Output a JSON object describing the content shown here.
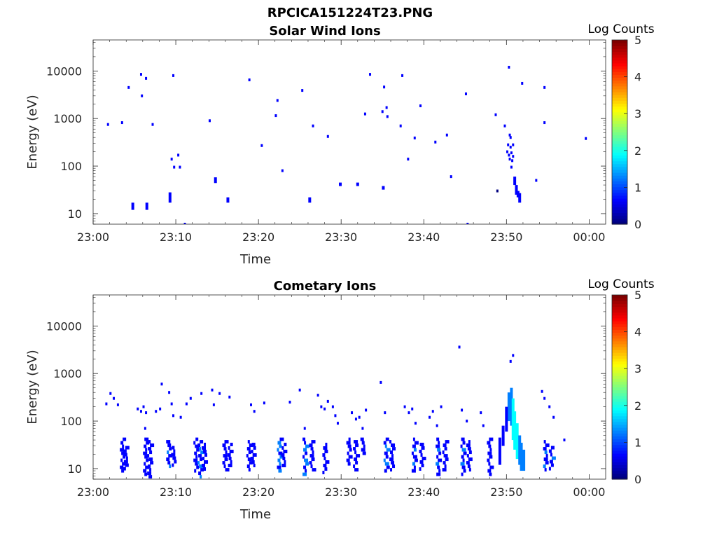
{
  "figure": {
    "title": "RPCICA151224T23.PNG"
  },
  "colormap": [
    "#00007f",
    "#0000ff",
    "#007fff",
    "#00ffff",
    "#7fff7f",
    "#ffff00",
    "#ff7f00",
    "#ff0000",
    "#7f0000"
  ],
  "chart_data": [
    {
      "type": "heatmap",
      "title": "Solar Wind Ions",
      "xlabel": "Time",
      "ylabel": "Energy (eV)",
      "x_ticks": [
        "23:00",
        "23:10",
        "23:20",
        "23:30",
        "23:40",
        "23:50",
        "00:00"
      ],
      "x_range_minutes": [
        0,
        62
      ],
      "y_scale": "log",
      "y_ticks": [
        "10",
        "100",
        "1000",
        "10000"
      ],
      "ylim": [
        6,
        45000
      ],
      "colorbar": {
        "label": "Log Counts",
        "ticks": [
          "0",
          "1",
          "2",
          "3",
          "4",
          "5"
        ],
        "range": [
          0,
          5
        ]
      },
      "cells": [
        [
          1.8,
          750,
          0.4
        ],
        [
          3.5,
          820,
          0.4
        ],
        [
          4.3,
          4500,
          0.4
        ],
        [
          5.8,
          8500,
          0.4
        ],
        [
          5.9,
          3000,
          0.4
        ],
        [
          6.4,
          7000,
          0.4
        ],
        [
          7.2,
          750,
          0.4
        ],
        [
          9.7,
          8000,
          0.4
        ],
        [
          9.5,
          140,
          0.5
        ],
        [
          9.8,
          95,
          0.4
        ],
        [
          10.3,
          170,
          0.4
        ],
        [
          10.5,
          95,
          0.4
        ],
        [
          11.1,
          6,
          0.4
        ],
        [
          14.1,
          900,
          0.4
        ],
        [
          18.9,
          6500,
          0.4
        ],
        [
          20.4,
          270,
          0.4
        ],
        [
          22.1,
          1150,
          0.4
        ],
        [
          22.3,
          2400,
          0.4
        ],
        [
          22.9,
          80,
          0.4
        ],
        [
          25.3,
          3900,
          0.4
        ],
        [
          26.6,
          700,
          0.4
        ],
        [
          28.4,
          420,
          0.4
        ],
        [
          32.9,
          1250,
          0.4
        ],
        [
          33.5,
          8500,
          0.4
        ],
        [
          35.2,
          4600,
          0.4
        ],
        [
          35.0,
          1400,
          0.4
        ],
        [
          35.5,
          1700,
          0.4
        ],
        [
          35.6,
          1100,
          0.4
        ],
        [
          37.2,
          700,
          0.4
        ],
        [
          37.4,
          8000,
          0.4
        ],
        [
          38.1,
          140,
          0.5
        ],
        [
          38.9,
          390,
          0.4
        ],
        [
          39.6,
          1850,
          0.4
        ],
        [
          41.4,
          320,
          0.4
        ],
        [
          42.8,
          450,
          0.4
        ],
        [
          43.3,
          60,
          0.5
        ],
        [
          45.1,
          3300,
          0.4
        ],
        [
          45.3,
          6,
          0.4
        ],
        [
          48.7,
          1200,
          0.4
        ],
        [
          49.8,
          700,
          0.4
        ],
        [
          50.3,
          12000,
          0.4
        ],
        [
          50.4,
          450,
          0.4
        ],
        [
          50.5,
          400,
          0.4
        ],
        [
          50.2,
          280,
          0.4
        ],
        [
          50.5,
          250,
          0.4
        ],
        [
          50.8,
          280,
          0.4
        ],
        [
          50.1,
          200,
          0.4
        ],
        [
          50.6,
          190,
          0.4
        ],
        [
          50.3,
          170,
          0.4
        ],
        [
          50.8,
          160,
          0.4
        ],
        [
          50.4,
          140,
          0.4
        ],
        [
          50.7,
          130,
          0.4
        ],
        [
          50.6,
          95,
          0.4
        ],
        [
          51.9,
          5500,
          0.4
        ],
        [
          53.6,
          50,
          0.5
        ],
        [
          54.6,
          4500,
          0.4
        ],
        [
          54.6,
          820,
          0.4
        ],
        [
          59.6,
          380,
          0.4
        ],
        [
          48.9,
          30,
          0.3
        ]
      ],
      "streaks": [
        [
          4.8,
          12,
          17,
          0.5
        ],
        [
          6.5,
          12,
          17,
          0.5
        ],
        [
          9.3,
          17,
          28,
          0.5
        ],
        [
          14.8,
          44,
          58,
          0.5
        ],
        [
          16.3,
          17,
          22,
          0.5
        ],
        [
          26.2,
          17,
          22,
          0.5
        ],
        [
          29.9,
          38,
          45,
          0.5
        ],
        [
          32.0,
          38,
          45,
          0.5
        ],
        [
          35.1,
          32,
          38,
          0.5
        ],
        [
          51.0,
          40,
          60,
          0.5
        ],
        [
          51.2,
          25,
          40,
          0.6
        ],
        [
          51.6,
          17,
          27,
          0.9
        ],
        [
          51.4,
          22,
          30,
          0.6
        ]
      ]
    },
    {
      "type": "heatmap",
      "title": "Cometary Ions",
      "xlabel": "Time",
      "ylabel": "Energy (eV)",
      "x_ticks": [
        "23:00",
        "23:10",
        "23:20",
        "23:30",
        "23:40",
        "23:50",
        "00:00"
      ],
      "x_range_minutes": [
        0,
        62
      ],
      "y_scale": "log",
      "y_ticks": [
        "10",
        "100",
        "1000",
        "10000"
      ],
      "ylim": [
        6,
        45000
      ],
      "colorbar": {
        "label": "Log Counts",
        "ticks": [
          "0",
          "1",
          "2",
          "3",
          "4",
          "5"
        ],
        "range": [
          0,
          5
        ]
      },
      "bursts": [
        [
          3.4,
          9,
          45,
          0.5
        ],
        [
          3.8,
          10,
          30,
          0.4
        ],
        [
          6.2,
          7,
          45,
          0.5
        ],
        [
          6.7,
          7,
          40,
          0.4
        ],
        [
          9.0,
          12,
          40,
          0.6
        ],
        [
          9.6,
          12,
          30,
          0.5
        ],
        [
          12.3,
          9,
          45,
          0.5
        ],
        [
          12.8,
          7,
          40,
          0.8
        ],
        [
          13.3,
          10,
          35,
          0.5
        ],
        [
          15.8,
          10,
          40,
          0.5
        ],
        [
          16.4,
          12,
          35,
          0.4
        ],
        [
          18.7,
          9,
          40,
          0.5
        ],
        [
          19.2,
          12,
          35,
          0.5
        ],
        [
          22.4,
          9,
          45,
          0.9
        ],
        [
          22.9,
          12,
          35,
          0.5
        ],
        [
          25.5,
          7,
          45,
          0.7
        ],
        [
          26.3,
          9,
          40,
          0.5
        ],
        [
          27.9,
          9,
          35,
          0.5
        ],
        [
          30.8,
          12,
          45,
          0.5
        ],
        [
          31.6,
          10,
          40,
          0.5
        ],
        [
          32.5,
          22,
          45,
          0.4
        ],
        [
          35.3,
          9,
          45,
          0.7
        ],
        [
          36.0,
          10,
          40,
          0.5
        ],
        [
          38.7,
          9,
          45,
          0.6
        ],
        [
          39.6,
          10,
          35,
          0.5
        ],
        [
          41.6,
          7,
          45,
          0.6
        ],
        [
          42.4,
          10,
          40,
          0.5
        ],
        [
          44.6,
          7,
          45,
          0.6
        ],
        [
          45.3,
          10,
          40,
          0.5
        ],
        [
          47.8,
          7,
          45,
          0.5
        ],
        [
          54.6,
          9,
          40,
          0.6
        ],
        [
          55.3,
          10,
          30,
          0.6
        ]
      ],
      "cells": [
        [
          1.6,
          230,
          0.4
        ],
        [
          2.1,
          380,
          0.4
        ],
        [
          2.5,
          300,
          0.4
        ],
        [
          3.0,
          220,
          0.4
        ],
        [
          5.4,
          180,
          0.4
        ],
        [
          5.8,
          160,
          0.4
        ],
        [
          6.1,
          200,
          0.4
        ],
        [
          6.4,
          150,
          0.4
        ],
        [
          6.3,
          70,
          0.4
        ],
        [
          7.6,
          160,
          0.4
        ],
        [
          8.1,
          180,
          0.4
        ],
        [
          8.3,
          600,
          0.4
        ],
        [
          9.2,
          400,
          0.4
        ],
        [
          9.5,
          230,
          0.4
        ],
        [
          9.7,
          130,
          0.4
        ],
        [
          10.6,
          120,
          0.4
        ],
        [
          11.3,
          230,
          0.4
        ],
        [
          11.8,
          300,
          0.4
        ],
        [
          13.1,
          380,
          0.4
        ],
        [
          14.4,
          450,
          0.4
        ],
        [
          14.6,
          220,
          0.4
        ],
        [
          15.3,
          380,
          0.4
        ],
        [
          16.5,
          320,
          0.4
        ],
        [
          19.1,
          220,
          0.4
        ],
        [
          19.5,
          160,
          0.4
        ],
        [
          20.7,
          240,
          0.4
        ],
        [
          23.8,
          250,
          0.4
        ],
        [
          25.0,
          450,
          0.4
        ],
        [
          25.6,
          70,
          0.4
        ],
        [
          27.2,
          350,
          0.4
        ],
        [
          27.6,
          200,
          0.4
        ],
        [
          28.0,
          180,
          0.4
        ],
        [
          28.4,
          260,
          0.4
        ],
        [
          29.0,
          200,
          0.4
        ],
        [
          29.3,
          130,
          0.4
        ],
        [
          29.6,
          90,
          0.4
        ],
        [
          31.3,
          150,
          0.4
        ],
        [
          31.8,
          110,
          0.4
        ],
        [
          32.2,
          120,
          0.4
        ],
        [
          32.6,
          70,
          0.4
        ],
        [
          33.0,
          170,
          0.4
        ],
        [
          34.8,
          650,
          0.4
        ],
        [
          35.3,
          150,
          0.5
        ],
        [
          37.7,
          200,
          0.4
        ],
        [
          38.2,
          150,
          0.4
        ],
        [
          38.6,
          180,
          0.4
        ],
        [
          39.0,
          90,
          0.4
        ],
        [
          40.7,
          120,
          0.4
        ],
        [
          41.1,
          160,
          0.4
        ],
        [
          41.6,
          80,
          0.4
        ],
        [
          42.1,
          200,
          0.4
        ],
        [
          44.3,
          3600,
          0.4
        ],
        [
          44.6,
          170,
          0.4
        ],
        [
          45.2,
          100,
          0.4
        ],
        [
          46.9,
          150,
          0.4
        ],
        [
          47.2,
          80,
          0.4
        ],
        [
          50.5,
          1800,
          0.4
        ],
        [
          50.8,
          2400,
          0.4
        ],
        [
          54.3,
          420,
          0.4
        ],
        [
          54.6,
          300,
          0.4
        ],
        [
          55.2,
          200,
          0.4
        ],
        [
          55.7,
          120,
          0.4
        ],
        [
          57.0,
          40,
          0.4
        ]
      ],
      "streaks": [
        [
          50.6,
          80,
          500,
          1.4
        ],
        [
          50.8,
          40,
          300,
          1.7
        ],
        [
          51.0,
          25,
          160,
          1.6
        ],
        [
          51.3,
          16,
          90,
          1.6
        ],
        [
          51.6,
          12,
          50,
          1.5
        ],
        [
          51.8,
          9,
          35,
          1.4
        ],
        [
          52.1,
          9,
          25,
          1.3
        ],
        [
          50.3,
          100,
          400,
          1.2
        ],
        [
          50.0,
          60,
          200,
          0.8
        ],
        [
          49.6,
          30,
          80,
          0.6
        ],
        [
          49.2,
          12,
          45,
          0.5
        ]
      ]
    }
  ]
}
